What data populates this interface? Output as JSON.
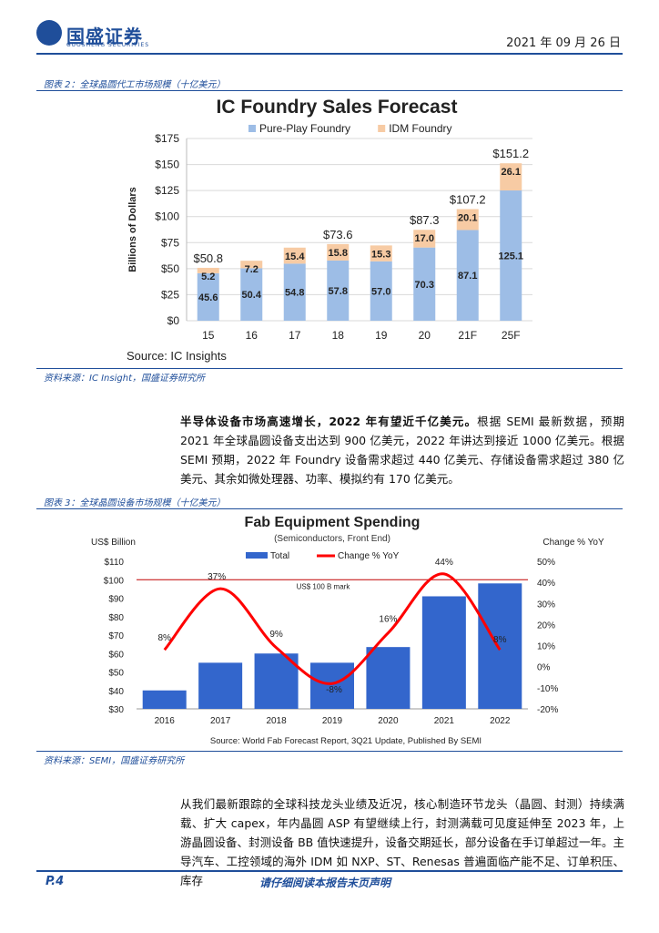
{
  "header": {
    "brand": "国盛证券",
    "brand_sub": "GUOSHENG SECURITIES",
    "date": "2021 年 09 月 26 日"
  },
  "figure2": {
    "caption": "图表 2：全球晶圆代工市场规模（十亿美元）",
    "source": "资料来源：IC Insight，国盛证券研究所"
  },
  "figure3": {
    "caption": "图表 3：全球晶圆设备市场规模（十亿美元）",
    "source": "资料来源：SEMI，国盛证券研究所"
  },
  "paragraph1": {
    "bold": "半导体设备市场高速增长，2022 年有望近千亿美元。",
    "text": "根据 SEMI 最新数据，预期 2021 年全球晶圆设备支出达到 900 亿美元，2022 年讲达到接近 1000 亿美元。根据 SEMI 预期，2022 年 Foundry 设备需求超过 440 亿美元、存储设备需求超过 380 亿美元、其余如微处理器、功率、模拟约有 170 亿美元。"
  },
  "paragraph2": {
    "text": "从我们最新跟踪的全球科技龙头业绩及近况，核心制造环节龙头（晶圆、封测）持续满载、扩大 capex，年内晶圆 ASP 有望继续上行，封测满载可见度延伸至 2023 年，上游晶圆设备、封测设备 BB 值快速提升，设备交期延长，部分设备在手订单超过一年。主导汽车、工控领域的海外 IDM 如 NXP、ST、Renesas 普遍面临产能不足、订单积压、库存"
  },
  "footer": {
    "page": "P.4",
    "disclaimer": "请仔细阅读本报告末页声明"
  },
  "chart_data": [
    {
      "type": "bar",
      "stacked": true,
      "title": "IC Foundry Sales Forecast",
      "ylabel": "Billions of Dollars",
      "source_note": "Source:  IC Insights",
      "categories": [
        "15",
        "16",
        "17",
        "18",
        "19",
        "20",
        "21F",
        "25F"
      ],
      "series": [
        {
          "name": "Pure-Play Foundry",
          "color": "#9dbde6",
          "values": [
            45.6,
            50.4,
            54.8,
            57.8,
            57.0,
            70.3,
            87.1,
            125.1
          ],
          "labels": [
            "45.6",
            "50.4",
            "54.8",
            "57.8",
            "57.0",
            "70.3",
            "87.1",
            "125.1"
          ]
        },
        {
          "name": "IDM Foundry",
          "color": "#f7cba4",
          "values": [
            5.2,
            7.2,
            15.4,
            15.8,
            15.3,
            17.0,
            20.1,
            26.1
          ],
          "labels": [
            "5.2",
            "7.2",
            "15.4",
            "15.8",
            "15.3",
            "17.0",
            "20.1",
            "26.1"
          ]
        }
      ],
      "totals": [
        "$50.8",
        "",
        "",
        "$73.6",
        "",
        "$87.3",
        "$107.2",
        "$151.2"
      ],
      "ylim": [
        0,
        175
      ],
      "yticks": [
        "$0",
        "$25",
        "$50",
        "$75",
        "$100",
        "$125",
        "$150",
        "$175"
      ],
      "grid": true,
      "legend": "top"
    },
    {
      "type": "bar",
      "title": "Fab Equipment Spending",
      "subtitle": "(Semiconductors, Front End)",
      "ylabel_left": "US$ Billion",
      "ylabel_right": "Change % YoY",
      "source_note": "Source: World Fab Forecast Report, 3Q21 Update, Published By SEMI",
      "categories": [
        "2016",
        "2017",
        "2018",
        "2019",
        "2020",
        "2021",
        "2022"
      ],
      "series": [
        {
          "name": "Total",
          "color": "#3366cc",
          "axis": "left",
          "values": [
            40,
            55,
            60,
            55,
            63.5,
            91,
            98
          ]
        },
        {
          "name": "Change % YoY",
          "color": "#ff0000",
          "axis": "right",
          "type": "line",
          "values": [
            8,
            37,
            9,
            -8,
            16,
            44,
            8
          ],
          "labels": [
            "8%",
            "37%",
            "9%",
            "-8%",
            "16%",
            "44%",
            "8%"
          ]
        }
      ],
      "reference_line": {
        "value": 100,
        "label": "US$ 100 B mark"
      },
      "ylim_left": [
        30,
        110
      ],
      "yticks_left": [
        "$30",
        "$40",
        "$50",
        "$60",
        "$70",
        "$80",
        "$90",
        "$100",
        "$110"
      ],
      "ylim_right": [
        -20,
        50
      ],
      "yticks_right": [
        "-20%",
        "-10%",
        "0%",
        "10%",
        "20%",
        "30%",
        "40%",
        "50%"
      ],
      "legend": "top"
    }
  ]
}
